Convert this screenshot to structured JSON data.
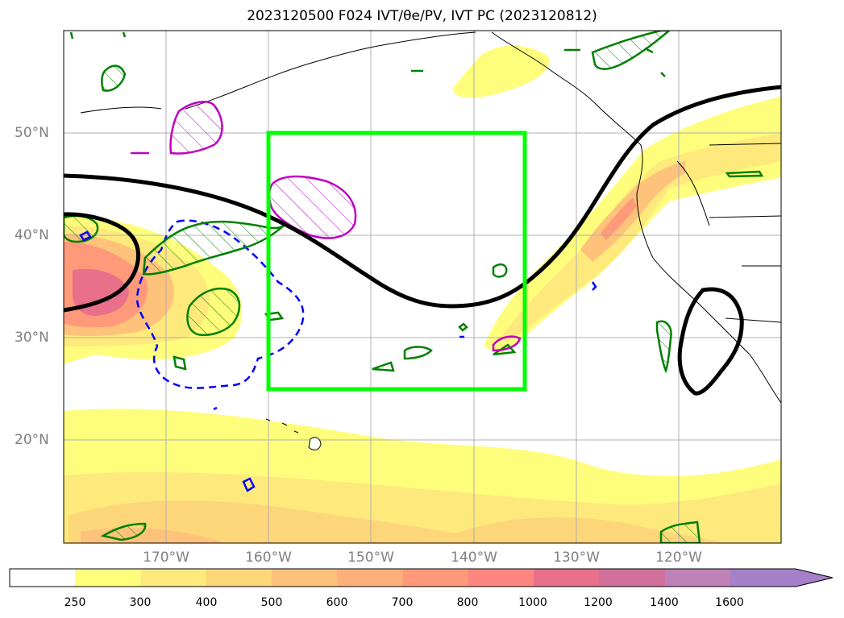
{
  "title": "2023120500 F024 IVT/θe/PV, IVT PC (2023120812)",
  "map": {
    "projection": "Plate Carrée",
    "lon_range": [
      "180°",
      "110°W"
    ],
    "lat_range": [
      "10°N",
      "60°N"
    ],
    "lat_ticks": [
      "20°N",
      "30°N",
      "40°N",
      "50°N"
    ],
    "lon_ticks": [
      "170°W",
      "160°W",
      "150°W",
      "140°W",
      "130°W",
      "120°W"
    ],
    "grid": true,
    "box": {
      "color": "#00ff00",
      "lon_min": -160,
      "lon_max": -135,
      "lat_min": 25,
      "lat_max": 50
    },
    "contour_colors": {
      "pc_line": "#000000",
      "theta_e": "#008000",
      "pv": "#c000c0",
      "dashed": "#0000ff"
    }
  },
  "colorbar": {
    "levels": [
      "250",
      "300",
      "400",
      "500",
      "600",
      "700",
      "800",
      "1000",
      "1200",
      "1400",
      "1600"
    ],
    "colors": [
      "#ffffff",
      "#fefe7c",
      "#fee97c",
      "#fed67a",
      "#fec27a",
      "#feb07a",
      "#fe9a7a",
      "#fe8680",
      "#e8708a",
      "#d0709a",
      "#c080b8",
      "#a680c8"
    ],
    "extend": "max"
  }
}
